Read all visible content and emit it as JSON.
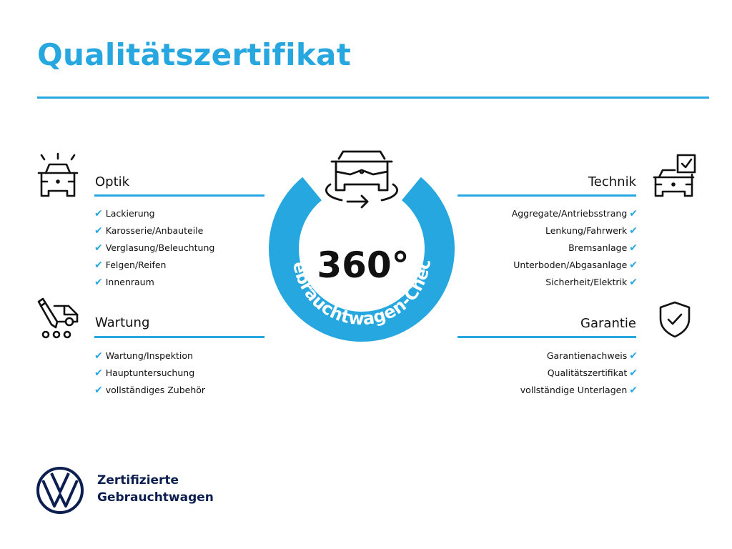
{
  "header": {
    "title": "Qualitätszertifikat"
  },
  "colors": {
    "accent": "#27a7df",
    "brand_navy": "#0b1e4f"
  },
  "center_badge": {
    "value": "360°",
    "ring_text": "Gebrauchtwagen-Check",
    "icon": "car-rotate-icon"
  },
  "sections": {
    "optik": {
      "title": "Optik",
      "icon": "car-lights-icon",
      "items": [
        "Lackierung",
        "Karosserie/Anbauteile",
        "Verglasung/Beleuchtung",
        "Felgen/Reifen",
        "Innenraum"
      ]
    },
    "wartung": {
      "title": "Wartung",
      "icon": "service-van-icon",
      "items": [
        "Wartung/Inspektion",
        "Hauptuntersuchung",
        "vollständiges Zubehör"
      ]
    },
    "technik": {
      "title": "Technik",
      "icon": "car-checklist-icon",
      "items": [
        "Aggregate/Antriebsstrang",
        "Lenkung/Fahrwerk",
        "Bremsanlage",
        "Unterboden/Abgasanlage",
        "Sicherheit/Elektrik"
      ]
    },
    "garantie": {
      "title": "Garantie",
      "icon": "shield-check-icon",
      "items": [
        "Garantienachweis",
        "Qualitätszertifikat",
        "vollständige Unterlagen"
      ]
    }
  },
  "check_mark": "✔",
  "footer": {
    "line1": "Zertifizierte",
    "line2": "Gebrauchtwagen",
    "logo": "vw-logo"
  }
}
